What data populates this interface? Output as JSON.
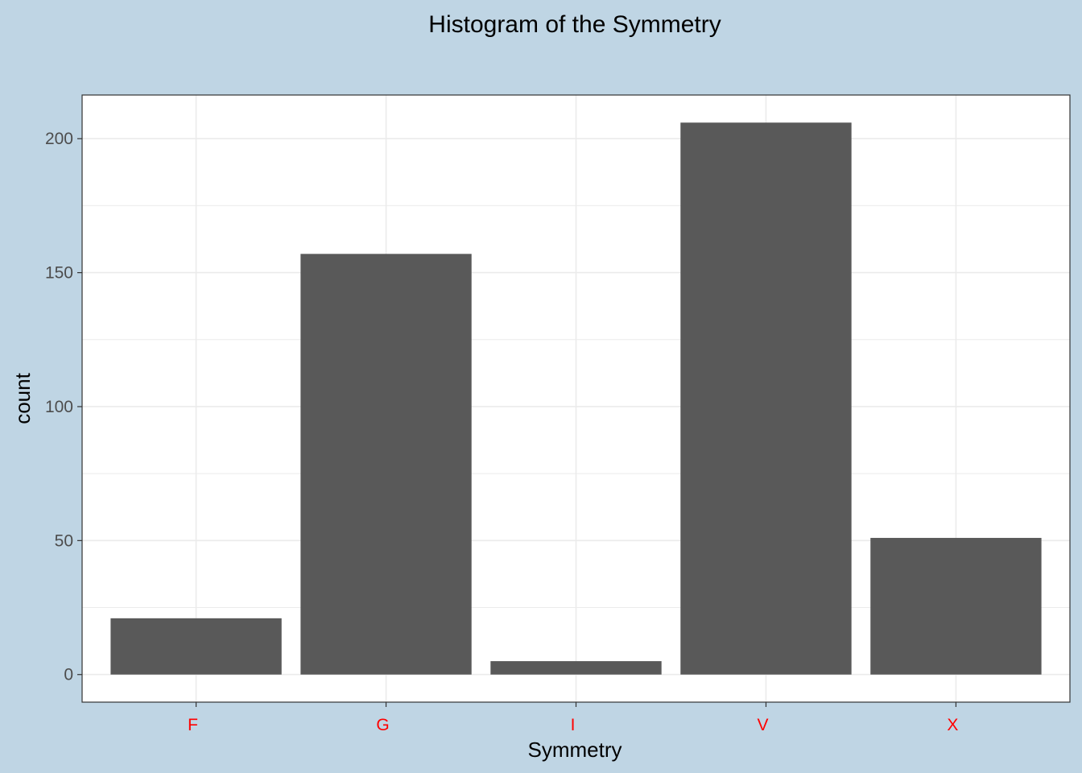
{
  "colors": {
    "background": "#bfd5e4",
    "panel": "#ffffff",
    "grid": "#ebebeb",
    "bar": "#595959",
    "axis_text": "#4d4d4d",
    "x_tick_text": "#ff0000",
    "frame": "#333333"
  },
  "chart_data": {
    "type": "bar",
    "title": "Histogram of the Symmetry",
    "xlabel": "Symmetry",
    "ylabel": "count",
    "categories": [
      "F",
      "G",
      "I",
      "V",
      "X"
    ],
    "values": [
      21,
      157,
      5,
      206,
      51
    ],
    "ylim": [
      -10.3,
      216.3
    ],
    "yticks": [
      0,
      50,
      100,
      150,
      200
    ],
    "grid": true,
    "legend": "none"
  }
}
